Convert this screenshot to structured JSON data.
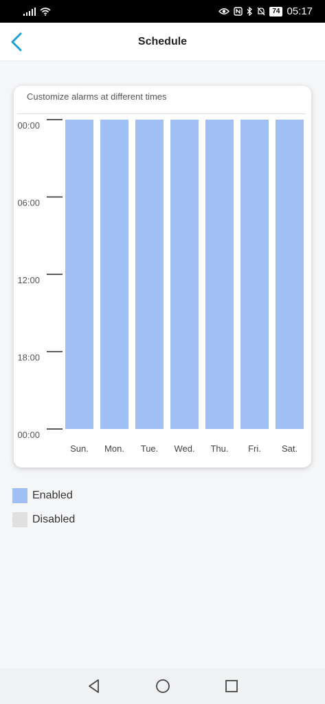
{
  "status_bar": {
    "battery": "74",
    "time": "05:17",
    "icons": [
      "signal-icon",
      "wifi-icon",
      "eye-icon",
      "nfc-icon",
      "bluetooth-icon",
      "mute-icon",
      "battery-icon"
    ]
  },
  "header": {
    "title": "Schedule",
    "back_icon": "chevron-left-icon",
    "accent": "#1a9fd6"
  },
  "card": {
    "caption": "Customize alarms at different times"
  },
  "chart_data": {
    "type": "bar",
    "categories": [
      "Sun.",
      "Mon.",
      "Tue.",
      "Wed.",
      "Thu.",
      "Fri.",
      "Sat."
    ],
    "y_ticks": [
      "00:00",
      "06:00",
      "12:00",
      "18:00",
      "00:00"
    ],
    "ylim": [
      0,
      24
    ],
    "series": [
      {
        "name": "Enabled",
        "color": "#a0bff4",
        "ranges": [
          [
            0,
            24
          ],
          [
            0,
            24
          ],
          [
            0,
            24
          ],
          [
            0,
            24
          ],
          [
            0,
            24
          ],
          [
            0,
            24
          ],
          [
            0,
            24
          ]
        ]
      }
    ]
  },
  "legend": [
    {
      "label": "Enabled",
      "color": "#a0bff4"
    },
    {
      "label": "Disabled",
      "color": "#e0e0e0"
    }
  ],
  "nav": {
    "icons": [
      "back-triangle-icon",
      "home-circle-icon",
      "recents-square-icon"
    ]
  }
}
